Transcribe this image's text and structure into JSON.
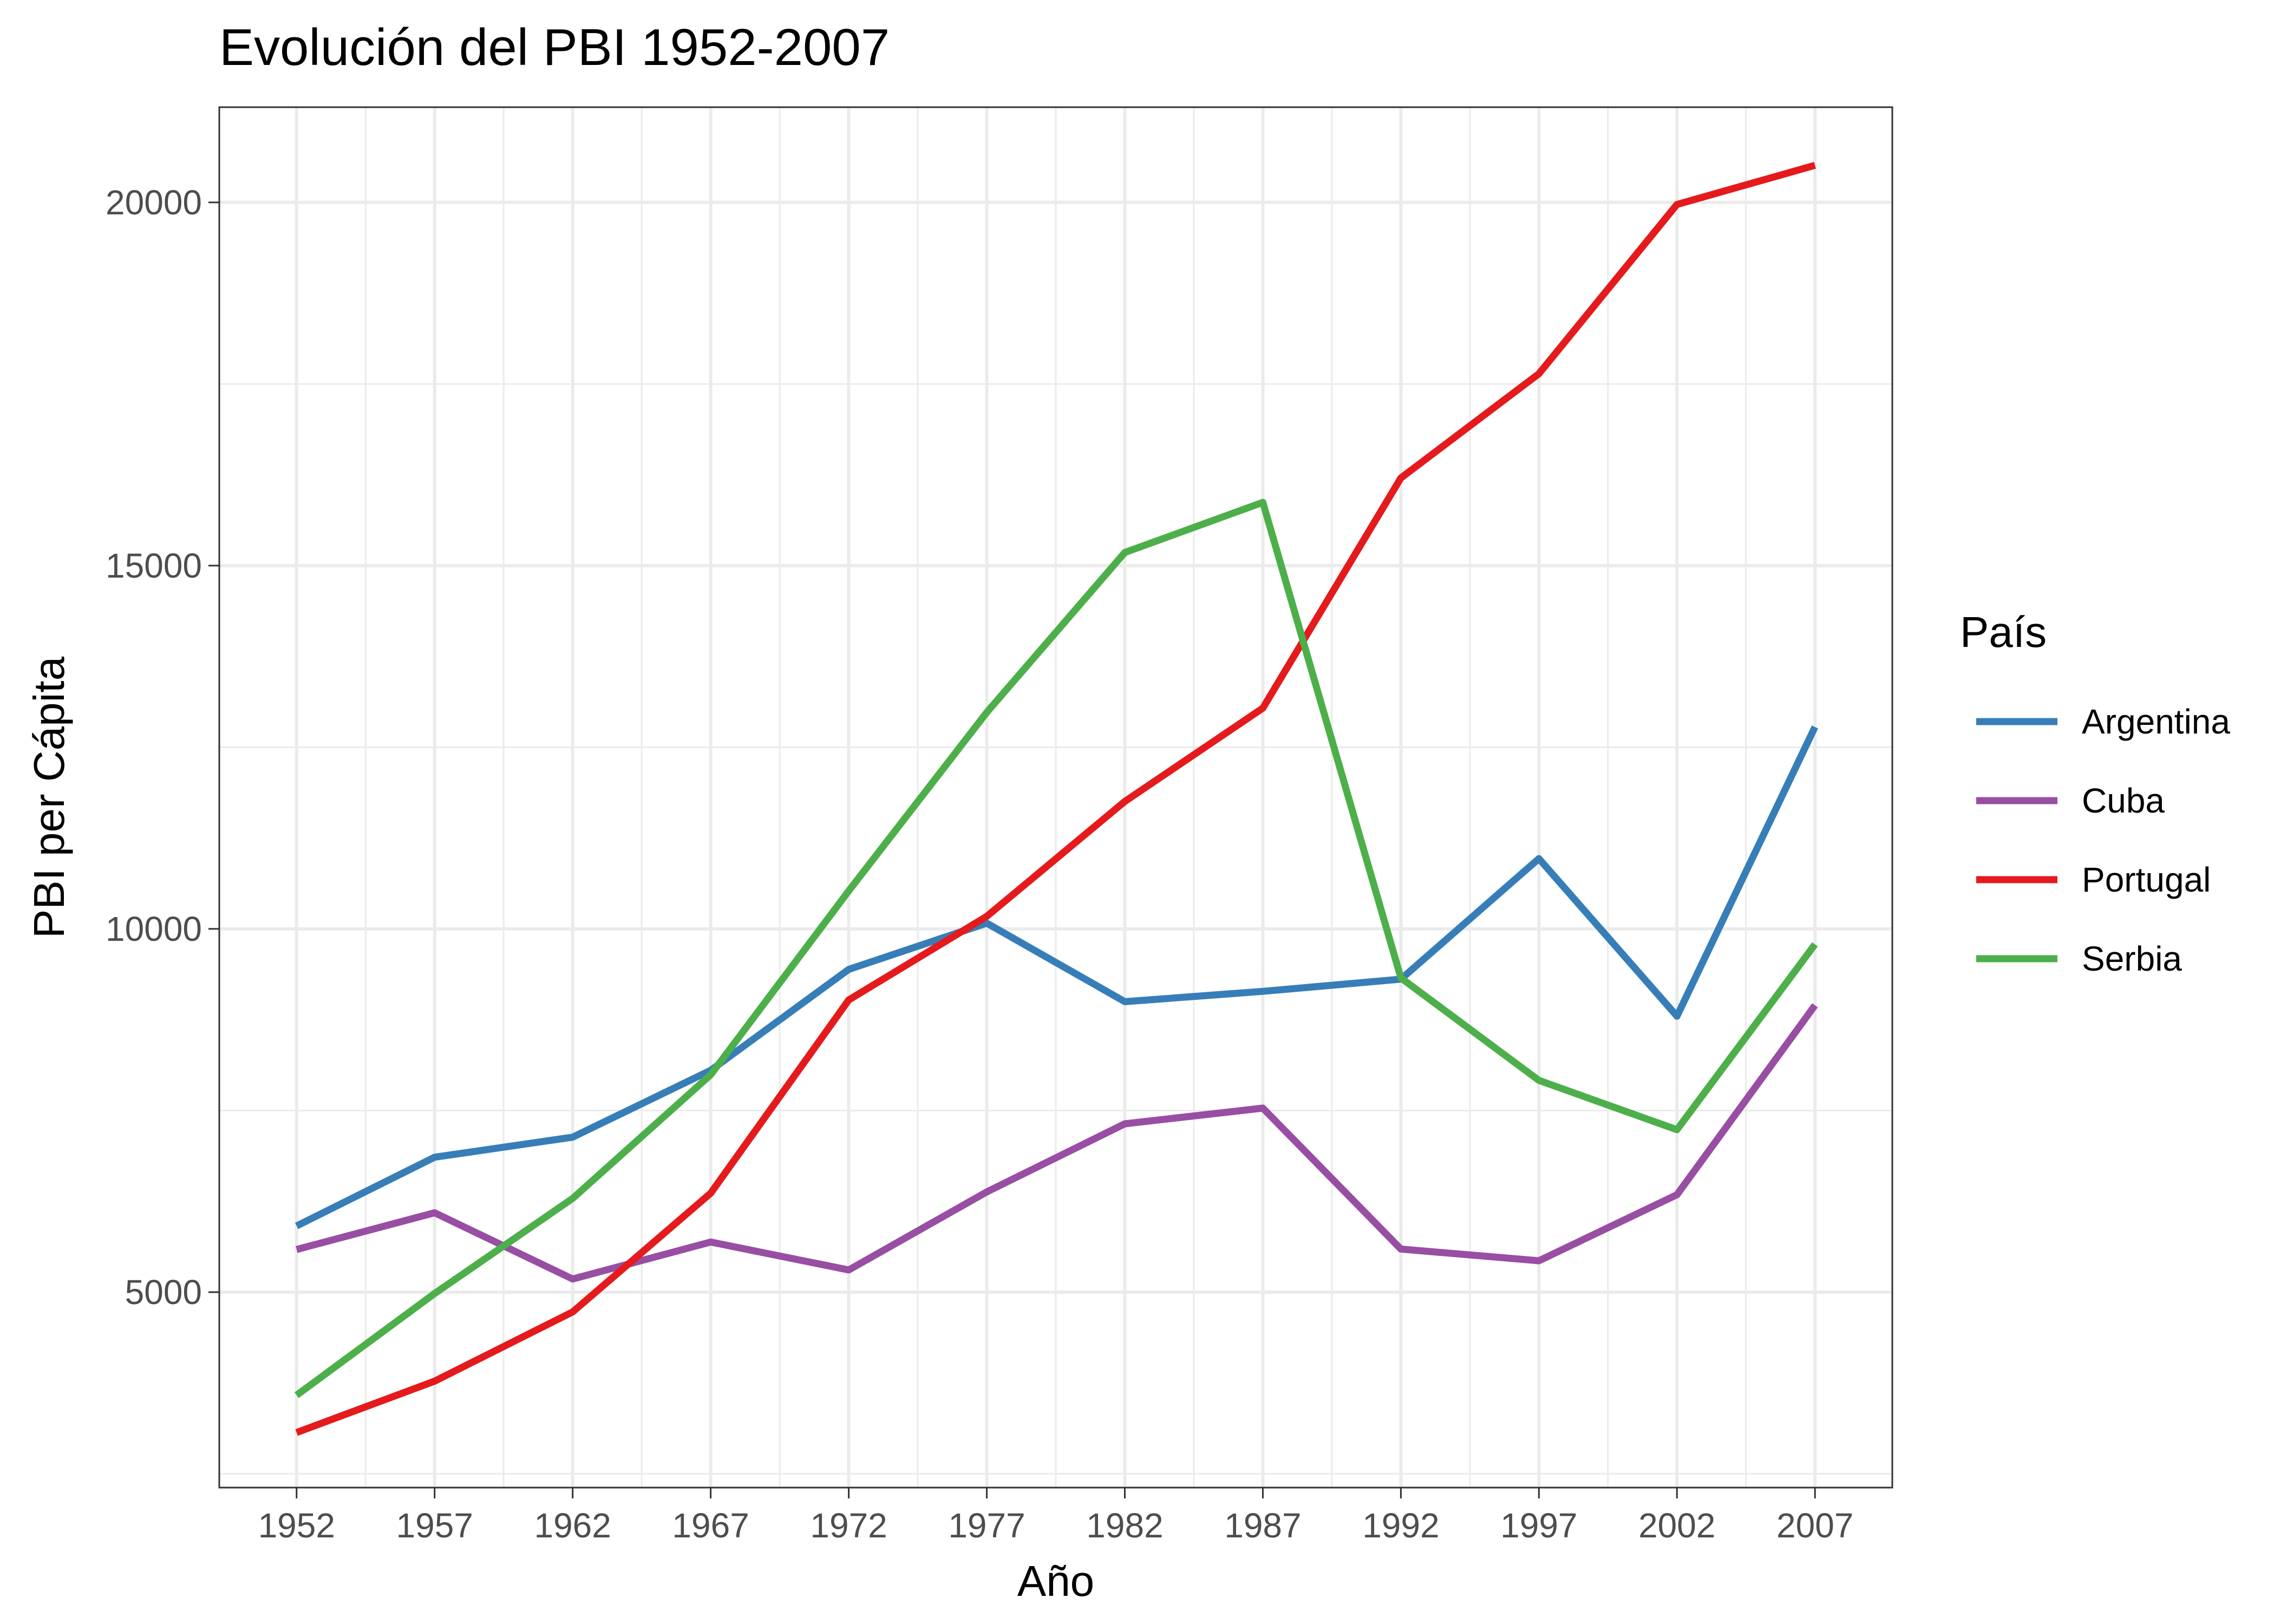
{
  "chart_data": {
    "type": "line",
    "title": "Evolución del PBI 1952-2007",
    "xlabel": "Año",
    "ylabel": "PBI per Cápita",
    "x": [
      1952,
      1957,
      1962,
      1967,
      1972,
      1977,
      1982,
      1987,
      1992,
      1997,
      2002,
      2007
    ],
    "x_ticks": [
      "1952",
      "1957",
      "1962",
      "1967",
      "1972",
      "1977",
      "1982",
      "1987",
      "1992",
      "1997",
      "2002",
      "2007"
    ],
    "y_ticks": [
      5000,
      10000,
      15000,
      20000
    ],
    "y_tick_labels": [
      "5000",
      "10000",
      "15000",
      "20000"
    ],
    "xlim": [
      1949.2,
      2009.8
    ],
    "ylim": [
      2310,
      21310
    ],
    "grid": true,
    "legend": {
      "title": "País",
      "position": "right"
    },
    "series": [
      {
        "name": "Argentina",
        "color": "#377EB8",
        "values": [
          5911,
          6857,
          7133,
          8053,
          9443,
          10079,
          8998,
          9140,
          9308,
          10967,
          8798,
          12779
        ]
      },
      {
        "name": "Cuba",
        "color": "#984EA3",
        "values": [
          5587,
          6093,
          5181,
          5690,
          5305,
          6380,
          7317,
          7533,
          5593,
          5432,
          6341,
          8948
        ]
      },
      {
        "name": "Portugal",
        "color": "#E41A1C",
        "values": [
          3068,
          3775,
          4728,
          6362,
          9022,
          10172,
          11754,
          13039,
          16207,
          17641,
          19971,
          20510
        ]
      },
      {
        "name": "Serbia",
        "color": "#4DAF4A",
        "values": [
          3581,
          4981,
          6290,
          7992,
          10523,
          12980,
          15181,
          15871,
          9325,
          7915,
          7236,
          9787
        ]
      }
    ]
  }
}
